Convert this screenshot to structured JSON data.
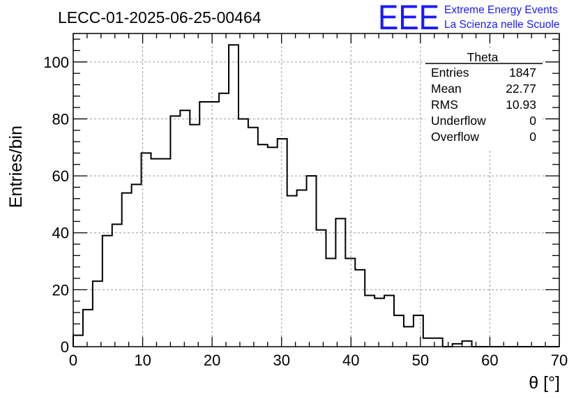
{
  "title": "LECC-01-2025-06-25-00464",
  "logo": {
    "letters": "EEE",
    "line1": "Extreme Energy Events",
    "line2": "La Scienza nelle Scuole",
    "color": "#1a1aff"
  },
  "stats_box": {
    "name": "Theta",
    "rows": [
      {
        "label": "Entries",
        "value": "1847"
      },
      {
        "label": "Mean",
        "value": "22.77"
      },
      {
        "label": "RMS",
        "value": "10.93"
      },
      {
        "label": "Underflow",
        "value": "0"
      },
      {
        "label": "Overflow",
        "value": "0"
      }
    ]
  },
  "chart_data": {
    "type": "histogram",
    "title": "LECC-01-2025-06-25-00464",
    "xlabel": "θ [°]",
    "ylabel": "Entries/bin",
    "xlim": [
      0,
      70
    ],
    "ylim": [
      0,
      110
    ],
    "bin_width": 1.4,
    "x_ticks": [
      0,
      10,
      20,
      30,
      40,
      50,
      60,
      70
    ],
    "y_ticks": [
      0,
      20,
      40,
      60,
      80,
      100
    ],
    "grid": true,
    "bin_edges_start": 0,
    "values": [
      4,
      13,
      23,
      39,
      43,
      54,
      57,
      68,
      66,
      66,
      81,
      83,
      78,
      86,
      86,
      89,
      106,
      80,
      77,
      71,
      70,
      73,
      53,
      55,
      60,
      41,
      31,
      45,
      31,
      27,
      18,
      17,
      18,
      11,
      7,
      11,
      3,
      3,
      0,
      1,
      2,
      0,
      0,
      0,
      0,
      0,
      0,
      0,
      0,
      0
    ]
  }
}
